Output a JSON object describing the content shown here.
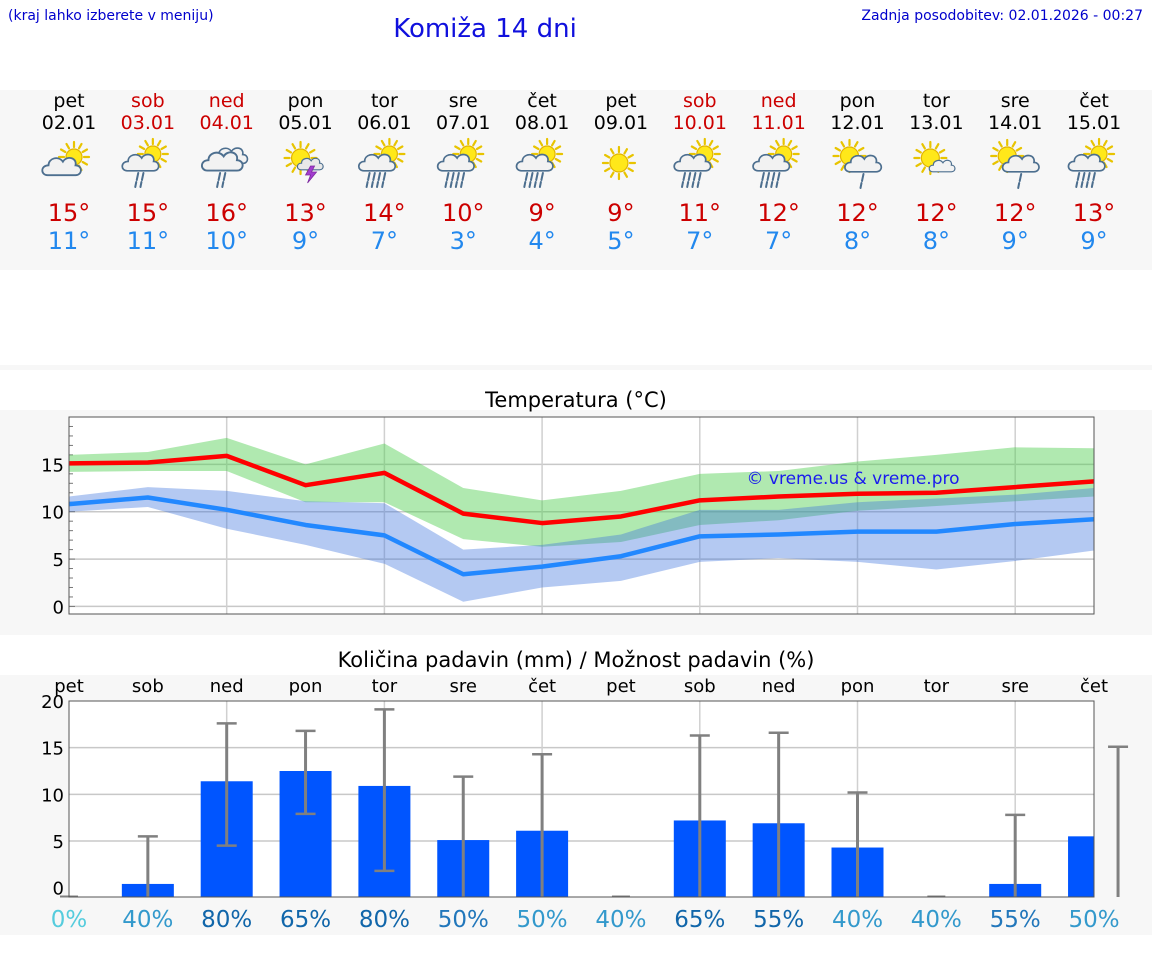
{
  "header": {
    "hint": "(kraj lahko izberete v meniju)",
    "title": "Komiža 14 dni",
    "updated": "Zadnja posodobitev: 02.01.2026 - 00:27"
  },
  "colors": {
    "weekday": "#000000",
    "weekend": "#cc0000",
    "max_temp": "#cc0000",
    "min_temp": "#2288ee",
    "max_line": "#ff0000",
    "min_line": "#2288ff",
    "bar": "#0055ff",
    "whisker": "#808080"
  },
  "forecast": [
    {
      "day": "pet",
      "date": "02.01",
      "weekend": false,
      "icon": "partly-cloudy-icon",
      "max": "15°",
      "min": "11°"
    },
    {
      "day": "sob",
      "date": "03.01",
      "weekend": true,
      "icon": "sun-cloud-rain-icon",
      "max": "15°",
      "min": "11°"
    },
    {
      "day": "ned",
      "date": "04.01",
      "weekend": true,
      "icon": "cloud-rain-icon",
      "max": "16°",
      "min": "10°"
    },
    {
      "day": "pon",
      "date": "05.01",
      "weekend": false,
      "icon": "sun-thunder-icon",
      "max": "13°",
      "min": "9°"
    },
    {
      "day": "tor",
      "date": "06.01",
      "weekend": false,
      "icon": "sun-cloud-heavy-rain-icon",
      "max": "14°",
      "min": "7°"
    },
    {
      "day": "sre",
      "date": "07.01",
      "weekend": false,
      "icon": "sun-cloud-heavy-rain-icon",
      "max": "10°",
      "min": "3°"
    },
    {
      "day": "čet",
      "date": "08.01",
      "weekend": false,
      "icon": "sun-cloud-heavy-rain-icon",
      "max": "9°",
      "min": "4°"
    },
    {
      "day": "pet",
      "date": "09.01",
      "weekend": false,
      "icon": "sun-icon",
      "max": "9°",
      "min": "5°"
    },
    {
      "day": "sob",
      "date": "10.01",
      "weekend": true,
      "icon": "sun-cloud-heavy-rain-icon",
      "max": "11°",
      "min": "7°"
    },
    {
      "day": "ned",
      "date": "11.01",
      "weekend": true,
      "icon": "sun-cloud-heavy-rain-icon",
      "max": "12°",
      "min": "7°"
    },
    {
      "day": "pon",
      "date": "12.01",
      "weekend": false,
      "icon": "sun-cloud-light-rain-icon",
      "max": "12°",
      "min": "8°"
    },
    {
      "day": "tor",
      "date": "13.01",
      "weekend": false,
      "icon": "sun-small-cloud-icon",
      "max": "12°",
      "min": "8°"
    },
    {
      "day": "sre",
      "date": "14.01",
      "weekend": false,
      "icon": "sun-cloud-light-rain-icon",
      "max": "12°",
      "min": "9°"
    },
    {
      "day": "čet",
      "date": "15.01",
      "weekend": false,
      "icon": "sun-cloud-heavy-rain-icon",
      "max": "13°",
      "min": "9°"
    }
  ],
  "chart_data": [
    {
      "type": "line",
      "title": "Temperatura (°C)",
      "watermark": "© vreme.us & vreme.pro",
      "categories": [
        "02.01",
        "03.01",
        "04.01",
        "05.01",
        "06.01",
        "07.01",
        "08.01",
        "09.01",
        "10.01",
        "11.01",
        "12.01",
        "13.01",
        "14.01",
        "15.01"
      ],
      "ylim": [
        -0.8,
        20
      ],
      "yticks": [
        0,
        5,
        10,
        15
      ],
      "series": [
        {
          "name": "max",
          "values": [
            15.1,
            15.2,
            15.9,
            12.8,
            14.1,
            9.8,
            8.8,
            9.5,
            11.2,
            11.6,
            11.9,
            12.0,
            12.6,
            13.2
          ],
          "band_low": [
            14.2,
            14.3,
            14.3,
            11.0,
            11.0,
            7.1,
            6.3,
            6.8,
            8.6,
            9.1,
            10.1,
            10.6,
            11.1,
            11.6
          ],
          "band_high": [
            16.0,
            16.3,
            17.8,
            15.0,
            17.2,
            12.5,
            11.2,
            12.2,
            14.0,
            14.3,
            15.3,
            16.0,
            16.8,
            16.7
          ]
        },
        {
          "name": "min",
          "values": [
            10.8,
            11.5,
            10.2,
            8.6,
            7.5,
            3.4,
            4.2,
            5.3,
            7.4,
            7.6,
            7.9,
            7.9,
            8.7,
            9.2
          ],
          "band_low": [
            10.0,
            10.5,
            8.2,
            6.5,
            4.5,
            0.5,
            2.0,
            2.7,
            4.7,
            5.1,
            4.7,
            3.9,
            4.8,
            5.9
          ],
          "band_high": [
            11.6,
            12.6,
            12.2,
            11.1,
            10.9,
            6.0,
            6.5,
            7.6,
            10.2,
            10.2,
            11.0,
            11.4,
            11.8,
            12.5
          ]
        }
      ]
    },
    {
      "type": "bar",
      "title": "Količina padavin (mm) / Možnost padavin (%)",
      "day_labels": [
        "pet",
        "sob",
        "ned",
        "pon",
        "tor",
        "sre",
        "čet",
        "pet",
        "sob",
        "ned",
        "pon",
        "tor",
        "sre",
        "čet"
      ],
      "ylim": [
        -1,
        20
      ],
      "yticks": [
        0,
        5,
        10,
        15,
        20
      ],
      "values": [
        0,
        0.4,
        11.4,
        12.5,
        10.9,
        5.1,
        6.1,
        0,
        7.2,
        6.9,
        4.3,
        0,
        0.4,
        5.5
      ],
      "err_low": [
        0,
        0,
        4.5,
        7.9,
        1.8,
        0,
        0,
        0,
        0,
        0,
        0,
        0,
        0,
        0
      ],
      "err_high": [
        0,
        5.5,
        17.6,
        16.8,
        19.1,
        11.9,
        14.3,
        0,
        16.3,
        16.6,
        10.2,
        0,
        7.8,
        15.1
      ],
      "probability": [
        "0%",
        "40%",
        "80%",
        "65%",
        "80%",
        "50%",
        "50%",
        "40%",
        "65%",
        "55%",
        "40%",
        "40%",
        "55%",
        "50%"
      ],
      "probability_colors": [
        "#55ccdd",
        "#3399cc",
        "#1166aa",
        "#1166aa",
        "#1166aa",
        "#2277bb",
        "#3399cc",
        "#3399cc",
        "#1166aa",
        "#1166aa",
        "#3399cc",
        "#3399cc",
        "#2277bb",
        "#3399cc"
      ]
    }
  ]
}
